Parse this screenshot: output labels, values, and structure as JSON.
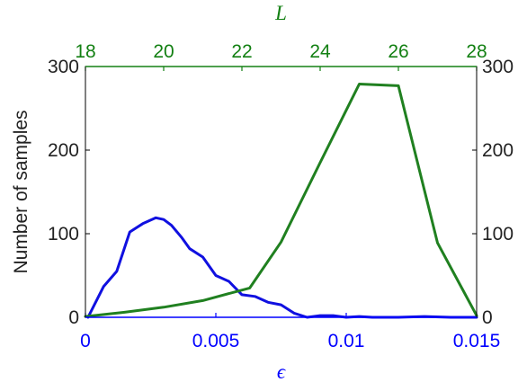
{
  "chart_data": {
    "type": "line",
    "ylabel": "Number of samples",
    "ylim": [
      0,
      300
    ],
    "yticks": [
      0,
      100,
      200,
      300
    ],
    "grid": false,
    "bottom_axis": {
      "label": "ϵ",
      "range": [
        0,
        0.015
      ],
      "ticks": [
        0,
        0.005,
        0.01,
        0.015
      ],
      "tick_labels": [
        "0",
        "0.005",
        "0.01",
        "0.015"
      ],
      "color": "#0000ff"
    },
    "top_axis": {
      "label": "L",
      "range": [
        18,
        28
      ],
      "ticks": [
        18,
        20,
        22,
        24,
        26,
        28
      ],
      "tick_labels": [
        "18",
        "20",
        "22",
        "24",
        "26",
        "28"
      ],
      "color": "#138013"
    },
    "series": [
      {
        "axis": "bottom",
        "color": "#1010e0",
        "x": [
          0.0001,
          0.0007,
          0.0012,
          0.0017,
          0.0022,
          0.0027,
          0.003,
          0.0033,
          0.0037,
          0.004,
          0.0045,
          0.005,
          0.0055,
          0.006,
          0.0065,
          0.007,
          0.0075,
          0.008,
          0.0085,
          0.009,
          0.0095,
          0.01,
          0.0105,
          0.011,
          0.012,
          0.013,
          0.014,
          0.015
        ],
        "y": [
          0,
          37,
          55,
          102,
          112,
          119,
          117,
          110,
          95,
          82,
          72,
          50,
          43,
          27,
          25,
          18,
          15,
          5,
          0,
          2,
          2,
          0,
          1,
          0,
          0,
          1,
          0,
          0
        ]
      },
      {
        "axis": "top",
        "color": "#208020",
        "x": [
          18,
          19,
          20,
          21,
          22.2,
          23,
          24,
          25,
          26,
          27,
          28
        ],
        "y": [
          1,
          6,
          12,
          20,
          35,
          90,
          185,
          279,
          277,
          89,
          2
        ]
      }
    ]
  }
}
